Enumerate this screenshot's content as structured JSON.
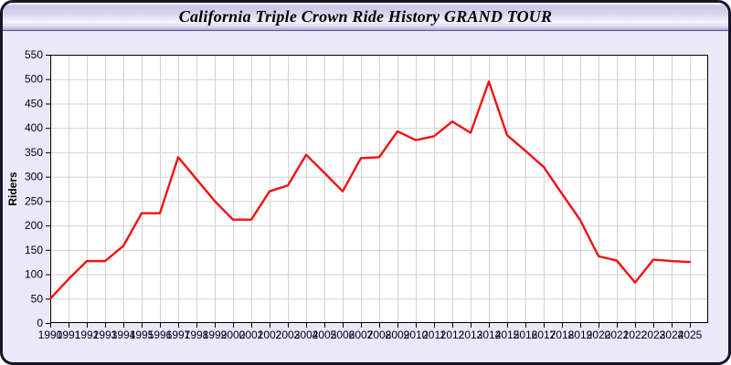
{
  "window": {
    "title": "California Triple Crown Ride History GRAND TOUR"
  },
  "colors": {
    "panel_bg": "#e9e9f8",
    "plot_bg": "#ffffff",
    "grid": "#d2d2d2",
    "axis": "#000000",
    "tick_label": "#00001e",
    "frame_border": "#16162a",
    "line": "#f01212"
  },
  "chart_data": {
    "type": "line",
    "title": "California Triple Crown Ride History GRAND TOUR",
    "xlabel": "",
    "ylabel": "Riders",
    "ylim": [
      0,
      550
    ],
    "ytick_step": 50,
    "grid": true,
    "legend": "none",
    "x": [
      1990,
      1991,
      1992,
      1993,
      1994,
      1995,
      1996,
      1997,
      1998,
      1999,
      2000,
      2001,
      2002,
      2003,
      2004,
      2005,
      2006,
      2007,
      2008,
      2009,
      2010,
      2011,
      2012,
      2013,
      2014,
      2015,
      2016,
      2017,
      2018,
      2019,
      2020,
      2021,
      2022,
      2023,
      2024,
      2025
    ],
    "series": [
      {
        "name": "Riders",
        "color": "#f01212",
        "values": [
          50,
          90,
          127,
          127,
          158,
          225,
          225,
          340,
          295,
          250,
          212,
          212,
          270,
          282,
          345,
          308,
          270,
          338,
          340,
          393,
          375,
          383,
          413,
          390,
          495,
          385,
          353,
          320,
          265,
          211,
          137,
          128,
          83,
          130,
          127,
          125
        ]
      }
    ]
  }
}
